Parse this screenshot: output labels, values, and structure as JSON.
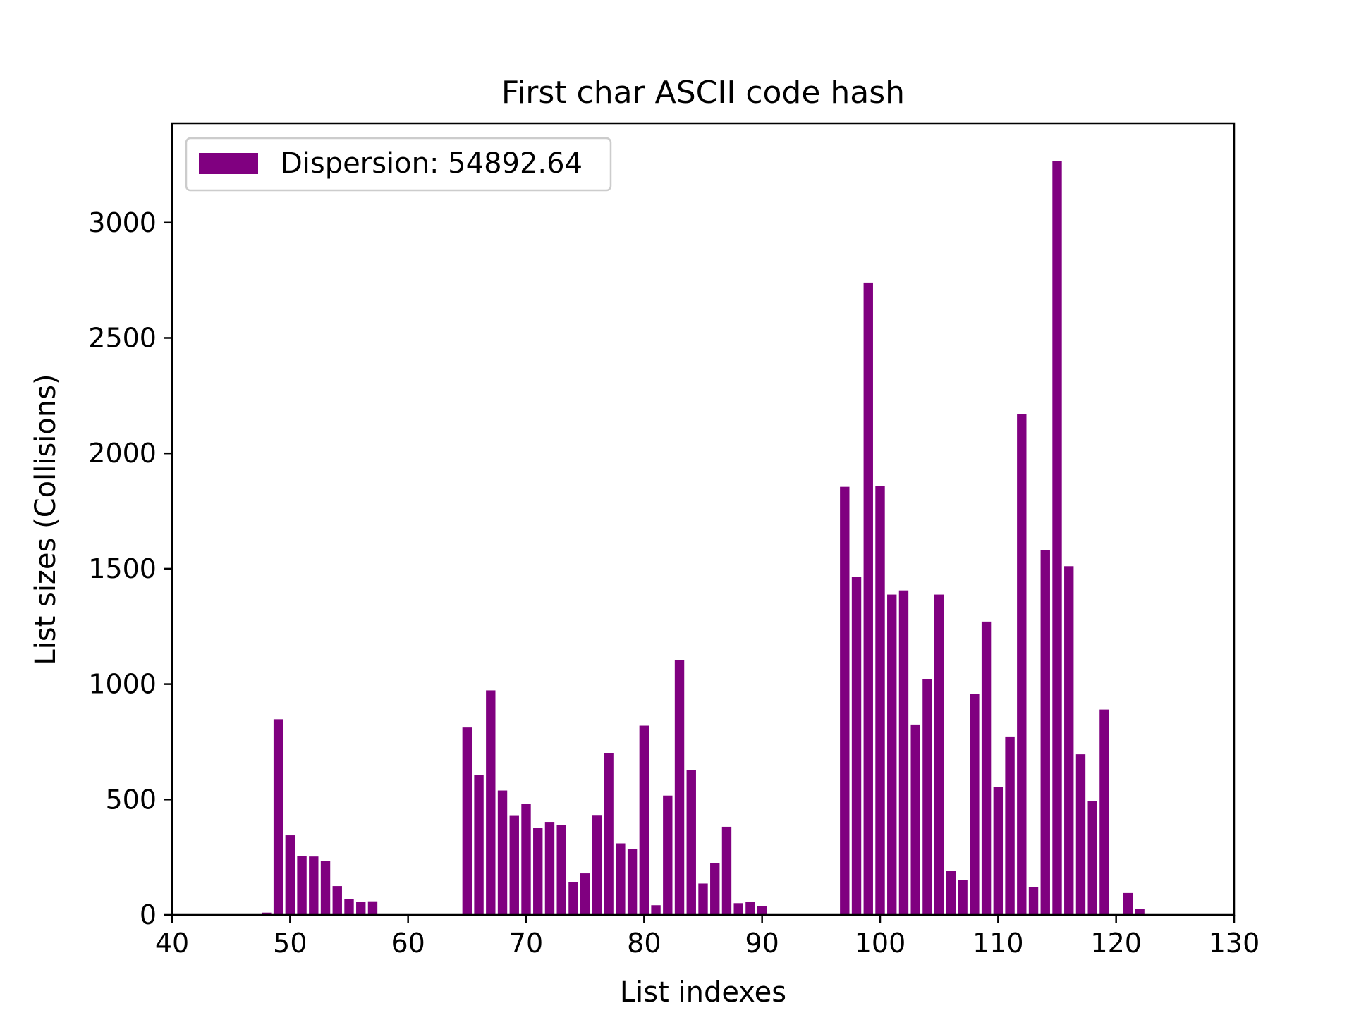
{
  "chart_data": {
    "type": "bar",
    "title": "First char ASCII code hash",
    "xlabel": "List indexes",
    "ylabel": "List sizes (Collisions)",
    "xlim": [
      40,
      130
    ],
    "ylim": [
      0,
      3430
    ],
    "xticks": [
      40,
      50,
      60,
      70,
      80,
      90,
      100,
      110,
      120,
      130
    ],
    "yticks": [
      0,
      500,
      1000,
      1500,
      2000,
      2500,
      3000
    ],
    "bar_color": "#800080",
    "legend": {
      "label": "Dispersion: 54892.64",
      "position": "upper-left"
    },
    "x": [
      48,
      49,
      50,
      51,
      52,
      53,
      54,
      55,
      56,
      57,
      65,
      66,
      67,
      68,
      69,
      70,
      71,
      72,
      73,
      74,
      75,
      76,
      77,
      78,
      79,
      80,
      81,
      82,
      83,
      84,
      85,
      86,
      87,
      88,
      89,
      90,
      97,
      98,
      99,
      100,
      101,
      102,
      103,
      104,
      105,
      106,
      107,
      108,
      109,
      110,
      111,
      112,
      113,
      114,
      115,
      116,
      117,
      118,
      119,
      121,
      122
    ],
    "values": [
      10,
      848,
      345,
      255,
      253,
      235,
      125,
      68,
      58,
      59,
      812,
      605,
      973,
      539,
      432,
      480,
      378,
      403,
      390,
      142,
      180,
      433,
      701,
      310,
      285,
      820,
      42,
      517,
      1105,
      628,
      136,
      224,
      382,
      51,
      55,
      39,
      1855,
      1466,
      2740,
      1858,
      1388,
      1406,
      825,
      1022,
      1388,
      190,
      150,
      959,
      1271,
      554,
      773,
      2169,
      122,
      1581,
      3267,
      1511,
      696,
      493,
      890,
      95,
      25
    ]
  }
}
